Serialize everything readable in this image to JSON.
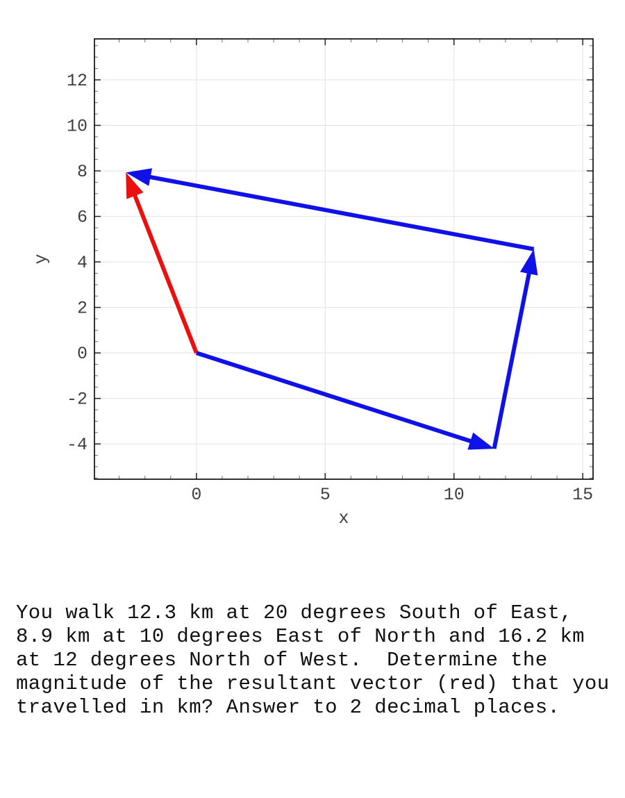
{
  "chart_data": {
    "type": "line",
    "subtype": "vector-plot",
    "title": "",
    "xlabel": "x",
    "ylabel": "y",
    "xlim": [
      -3.96,
      15.4
    ],
    "ylim": [
      -5.55,
      13.8
    ],
    "x_major_ticks": [
      0,
      5,
      10,
      15
    ],
    "x_tick_labels": [
      "0",
      "5",
      "10",
      "15"
    ],
    "x_minor_step": 1,
    "y_major_ticks": [
      -4,
      -2,
      0,
      2,
      4,
      6,
      8,
      10,
      12
    ],
    "y_tick_labels": [
      "-4",
      "-2",
      "0",
      "2",
      "4",
      "6",
      "8",
      "10",
      "12"
    ],
    "y_minor_step": 0.5,
    "grid": true,
    "frame": true,
    "legend": "none",
    "colors": {
      "leg_vector": "#1010e8",
      "resultant_vector": "#ed0e0e",
      "grid": "#e2e2e2",
      "frame": "#000000",
      "major_tick": "#222222",
      "minor_tick": "#777777"
    },
    "vectors": [
      {
        "name": "resultant-vector",
        "from": [
          0,
          0
        ],
        "to": [
          -2.74,
          7.93
        ],
        "color_key": "resultant_vector"
      },
      {
        "name": "leg-1-vector",
        "from": [
          0,
          0
        ],
        "to": [
          11.56,
          -4.21
        ],
        "color_key": "leg_vector"
      },
      {
        "name": "leg-2-vector",
        "from": [
          11.56,
          -4.21
        ],
        "to": [
          13.1,
          4.56
        ],
        "color_key": "leg_vector"
      },
      {
        "name": "leg-3-vector",
        "from": [
          13.1,
          4.56
        ],
        "to": [
          -2.74,
          7.93
        ],
        "color_key": "leg_vector"
      }
    ]
  },
  "question": {
    "lines": [
      "You walk 12.3 km at 20 degrees South of East,",
      "8.9 km at 10 degrees East of North and 16.2 km",
      "at 12 degrees North of West.  Determine the",
      "magnitude of the resultant vector (red) that you",
      "travelled in km? Answer to 2 decimal places."
    ]
  }
}
